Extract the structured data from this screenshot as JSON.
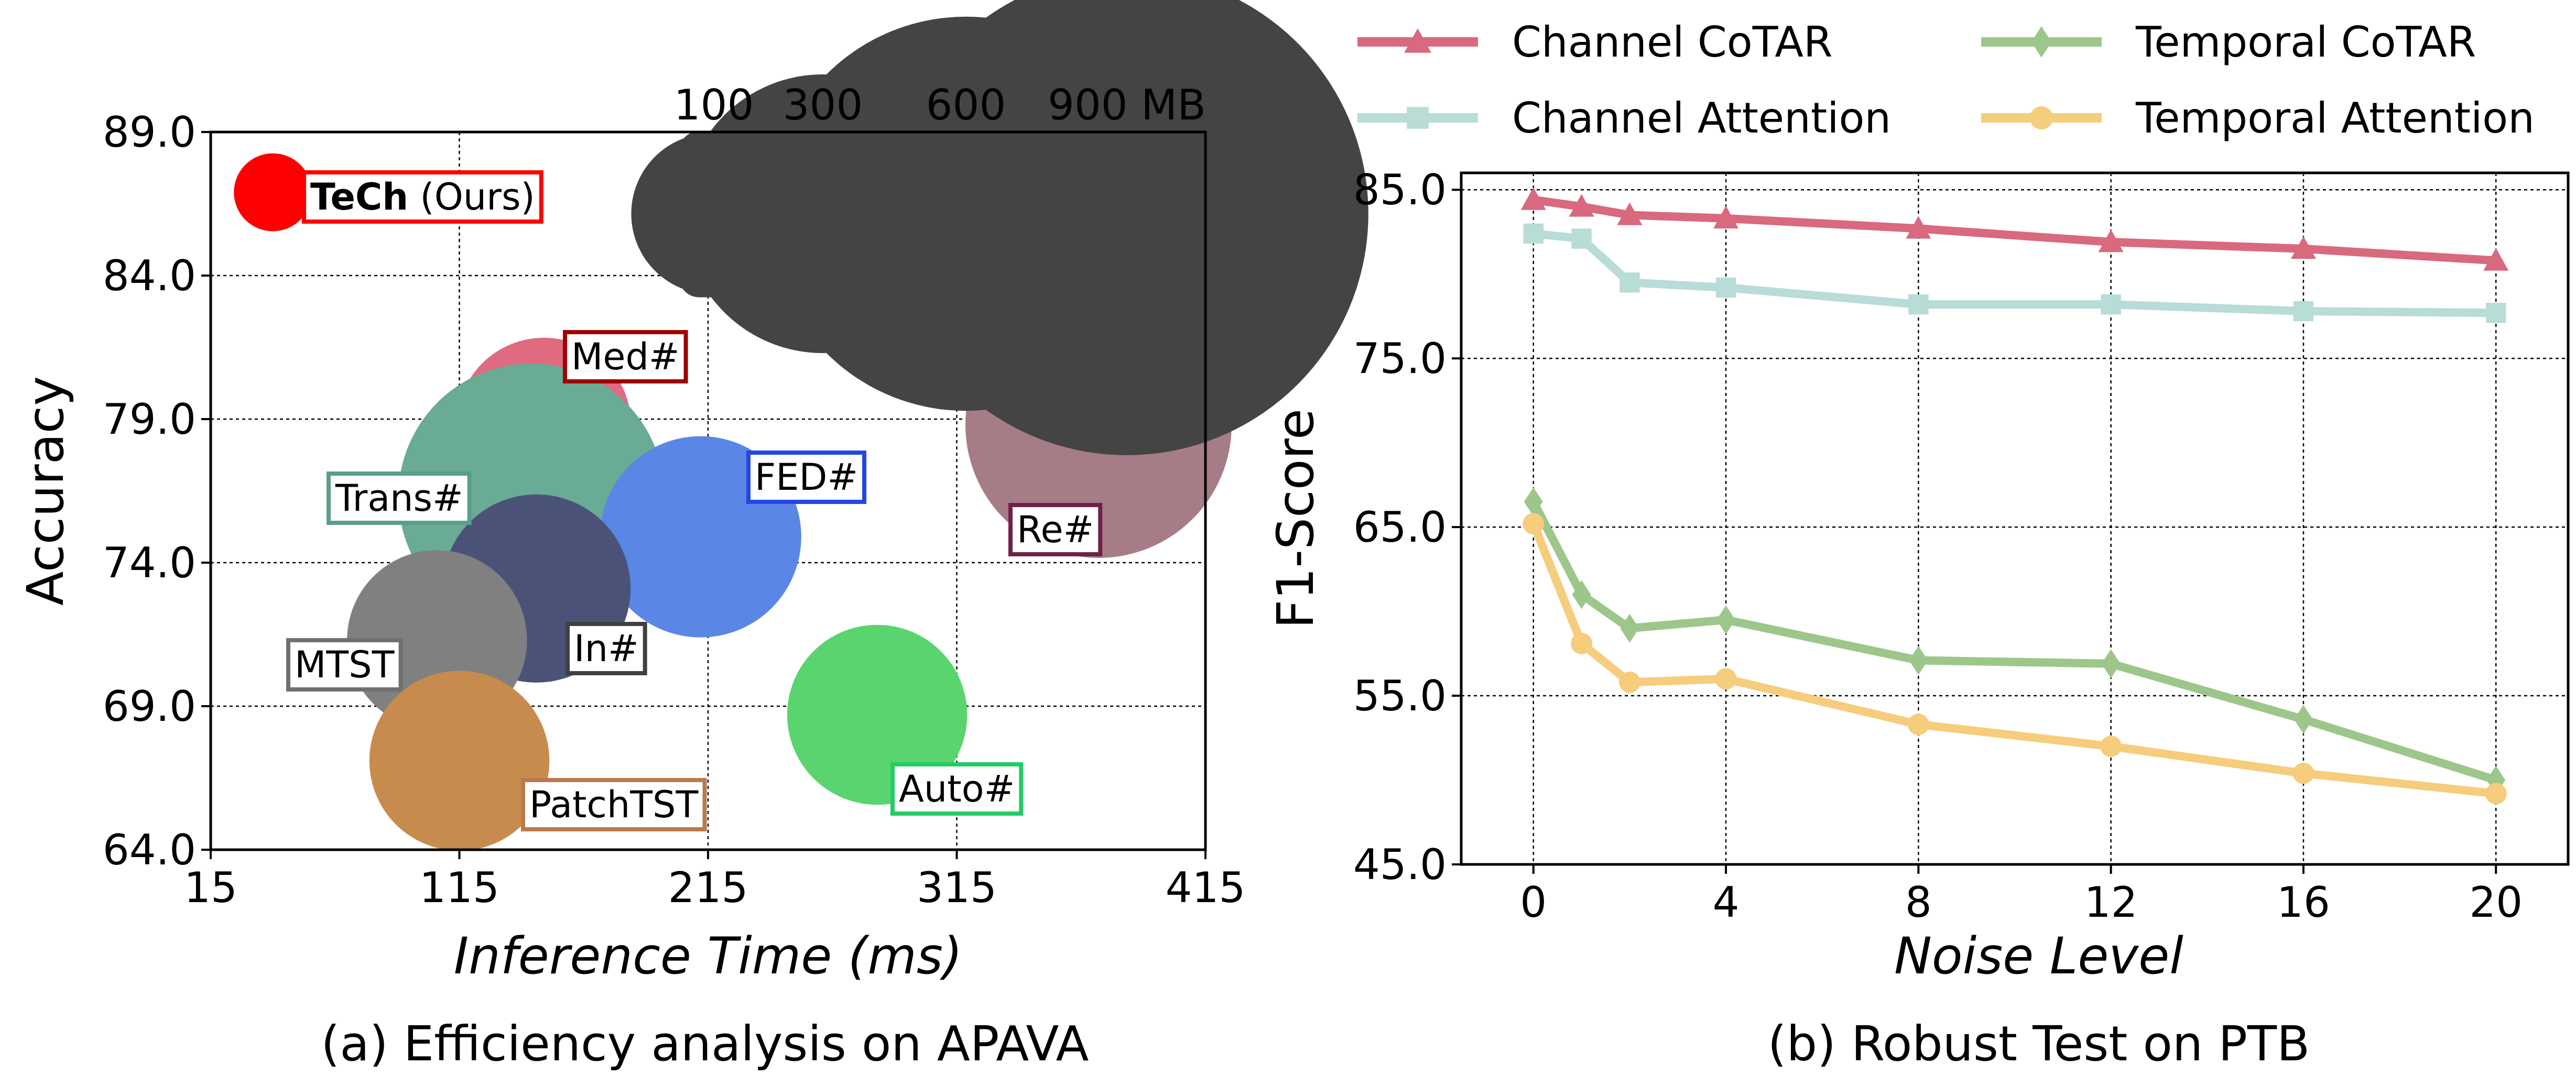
{
  "chart_data": [
    {
      "type": "scatter",
      "caption": "(a) Efficiency analysis on APAVA",
      "xlabel": "Inference Time (ms)",
      "ylabel": "Accuracy",
      "xlim": [
        15,
        415
      ],
      "ylim": [
        64.0,
        89.0
      ],
      "xticks": [
        "15",
        "115",
        "215",
        "315",
        "415"
      ],
      "yticks": [
        "64.0",
        "69.0",
        "74.0",
        "79.0",
        "84.0",
        "89.0"
      ],
      "grid": true,
      "points": [
        {
          "label_bold": "TeCh",
          "label": " (Ours)",
          "x": 40,
          "y": 86.9,
          "size_mb": 60,
          "color": "#ff0000",
          "box": "#ff0000"
        },
        {
          "label": "Med#",
          "x": 149,
          "y": 78.8,
          "size_mb": 300,
          "color": "#e06a80",
          "box": "#a00000"
        },
        {
          "label": "Trans#",
          "x": 144,
          "y": 76.3,
          "size_mb": 700,
          "color": "#6aab95",
          "box": "#5a9e8e"
        },
        {
          "label": "FED#",
          "x": 212,
          "y": 74.9,
          "size_mb": 400,
          "color": "#5a86e6",
          "box": "#2547e0"
        },
        {
          "label": "In#",
          "x": 146,
          "y": 73.1,
          "size_mb": 350,
          "color": "#4a5377",
          "box": "#404040"
        },
        {
          "label": "MTST",
          "x": 106,
          "y": 71.3,
          "size_mb": 320,
          "color": "#808080",
          "box": "#707070"
        },
        {
          "label": "PatchTST",
          "x": 115,
          "y": 67.1,
          "size_mb": 320,
          "color": "#c88b4e",
          "box": "#b87a4e"
        },
        {
          "label": "Auto#",
          "x": 283,
          "y": 68.7,
          "size_mb": 320,
          "color": "#5ad46e",
          "box": "#22cc66"
        },
        {
          "label": "Re#",
          "x": 372,
          "y": 78.8,
          "size_mb": 700,
          "color": "#a67c86",
          "box": "#70204a"
        }
      ],
      "size_legend": {
        "labels": [
          "100",
          "300",
          "600",
          "900 MB"
        ],
        "sizes_mb": [
          100,
          300,
          600,
          900
        ],
        "color": "#444444"
      }
    },
    {
      "type": "line",
      "caption": "(b) Robust Test on PTB",
      "xlabel": "Noise Level",
      "ylabel": "F1-Score",
      "xlim": [
        -1.5,
        21.5
      ],
      "ylim": [
        45.0,
        86.0
      ],
      "xticks": [
        "0",
        "4",
        "8",
        "12",
        "16",
        "20"
      ],
      "yticks": [
        "45.0",
        "55.0",
        "65.0",
        "75.0",
        "85.0"
      ],
      "grid": true,
      "x": [
        0,
        1,
        2,
        4,
        8,
        12,
        16,
        20
      ],
      "series": [
        {
          "name": "Channel CoTAR",
          "color": "#d9697e",
          "marker": "triangle",
          "values": [
            84.4,
            84.0,
            83.5,
            83.3,
            82.7,
            81.9,
            81.5,
            80.8
          ]
        },
        {
          "name": "Channel Attention",
          "color": "#b8dcd6",
          "marker": "square",
          "values": [
            82.4,
            82.1,
            79.5,
            79.2,
            78.2,
            78.2,
            77.8,
            77.7
          ]
        },
        {
          "name": "Temporal CoTAR",
          "color": "#9dc78a",
          "marker": "diamond",
          "values": [
            66.5,
            61.0,
            59.0,
            59.5,
            57.1,
            56.9,
            53.6,
            50.0
          ]
        },
        {
          "name": "Temporal Attention",
          "color": "#f5cd7c",
          "marker": "circle",
          "values": [
            65.2,
            58.1,
            55.8,
            56.0,
            53.3,
            52.0,
            50.4,
            49.2
          ]
        }
      ]
    }
  ]
}
